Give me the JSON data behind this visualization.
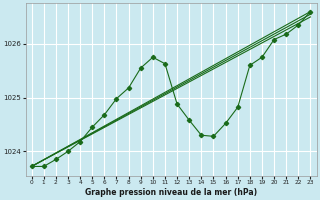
{
  "title": "Graphe pression niveau de la mer (hPa)",
  "bg_color": "#cbe9f0",
  "line_color": "#1a6b1a",
  "grid_color": "#ffffff",
  "xlim": [
    -0.5,
    23.5
  ],
  "ylim": [
    1023.55,
    1026.75
  ],
  "xticks": [
    0,
    1,
    2,
    3,
    4,
    5,
    6,
    7,
    8,
    9,
    10,
    11,
    12,
    13,
    14,
    15,
    16,
    17,
    18,
    19,
    20,
    21,
    22,
    23
  ],
  "yticks": [
    1024,
    1025,
    1026
  ],
  "series_wavy": {
    "x": [
      0,
      1,
      2,
      3,
      4,
      5,
      6,
      7,
      8,
      9,
      10,
      11,
      12,
      13,
      14,
      15,
      16,
      17,
      18,
      19,
      20,
      21,
      22,
      23
    ],
    "y": [
      1023.72,
      1023.72,
      1023.85,
      1024.0,
      1024.18,
      1024.45,
      1024.68,
      1024.98,
      1025.18,
      1025.55,
      1025.75,
      1025.63,
      1024.88,
      1024.58,
      1024.3,
      1024.28,
      1024.52,
      1024.82,
      1025.6,
      1025.75,
      1026.08,
      1026.18,
      1026.35,
      1026.6
    ]
  },
  "series_straight": [
    {
      "x": [
        0,
        23
      ],
      "y": [
        1023.72,
        1026.6
      ]
    },
    {
      "x": [
        0,
        23
      ],
      "y": [
        1023.72,
        1026.55
      ]
    },
    {
      "x": [
        0,
        23
      ],
      "y": [
        1023.72,
        1026.5
      ]
    }
  ]
}
